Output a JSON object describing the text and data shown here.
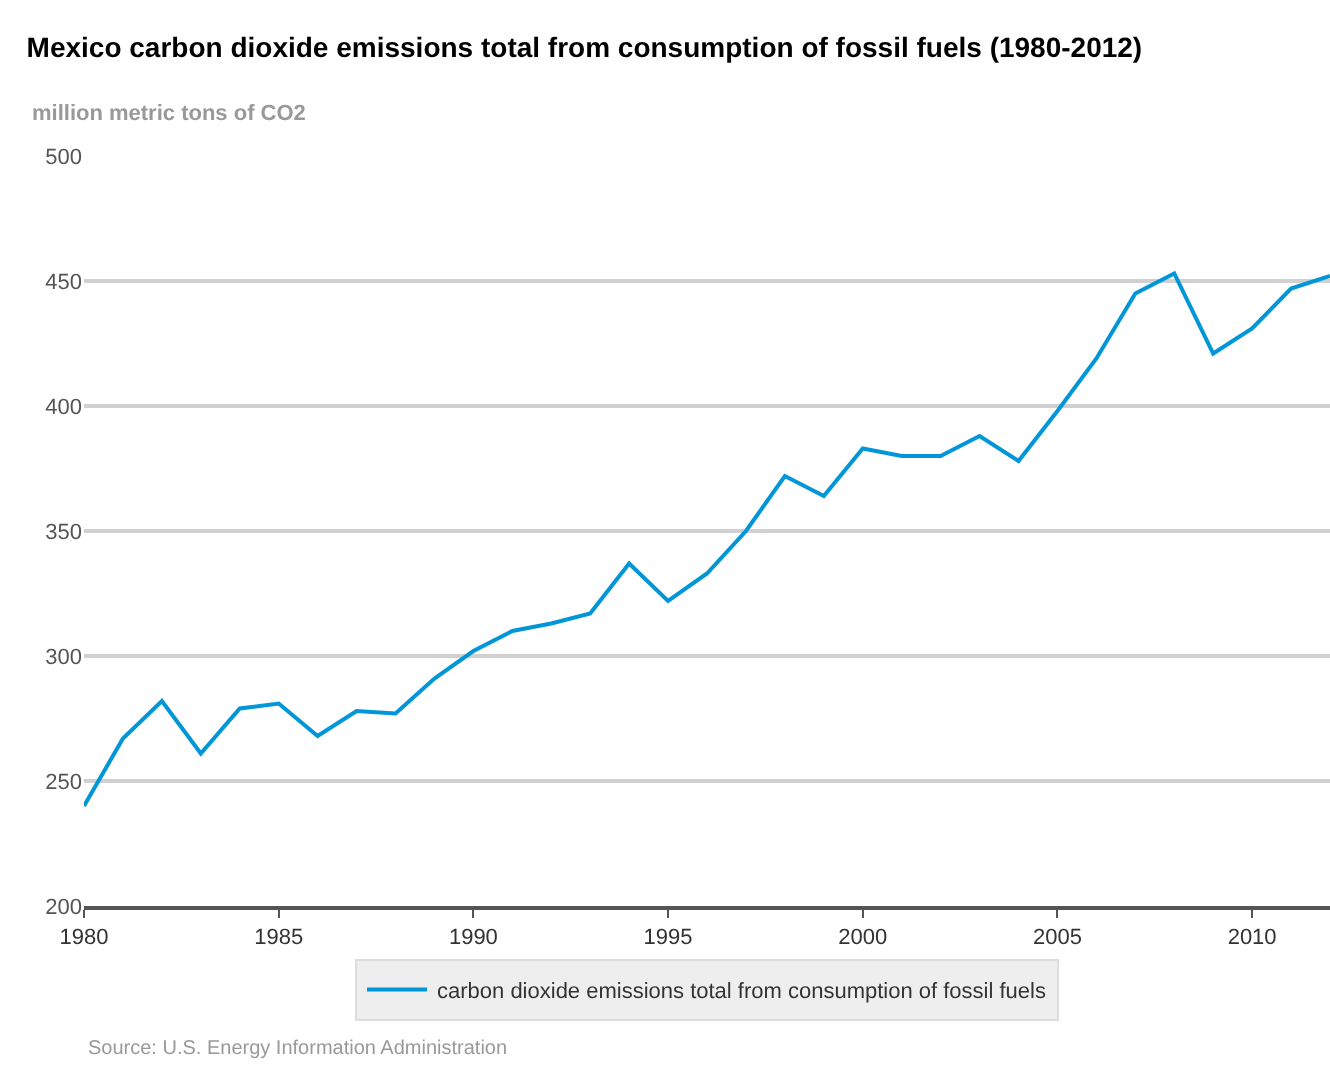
{
  "chart_data": {
    "type": "line",
    "title": "Mexico carbon dioxide emissions total from consumption of fossil fuels (1980-2012)",
    "ylabel": "million metric tons of CO2",
    "x": [
      1980,
      1981,
      1982,
      1983,
      1984,
      1985,
      1986,
      1987,
      1988,
      1989,
      1990,
      1991,
      1992,
      1993,
      1994,
      1995,
      1996,
      1997,
      1998,
      1999,
      2000,
      2001,
      2002,
      2003,
      2004,
      2005,
      2006,
      2007,
      2008,
      2009,
      2010,
      2011,
      2012
    ],
    "series": [
      {
        "name": "carbon dioxide emissions total from consumption of fossil fuels",
        "color": "#0096d7",
        "values": [
          240,
          267,
          282,
          261,
          279,
          281,
          268,
          278,
          277,
          291,
          302,
          310,
          313,
          317,
          337,
          322,
          333,
          350,
          372,
          364,
          383,
          380,
          380,
          388,
          378,
          398,
          419,
          445,
          453,
          421,
          431,
          447,
          452
        ]
      }
    ],
    "xlim": [
      1980,
      2012
    ],
    "xticks": [
      1980,
      1985,
      1990,
      1995,
      2000,
      2005,
      2010
    ],
    "ylim": [
      200,
      500
    ],
    "yticks": [
      200,
      250,
      300,
      350,
      400,
      450,
      500
    ],
    "grid": "y",
    "legend": "bottom",
    "marker": "none",
    "line_style": "solid",
    "annotations": [
      "Source: U.S. Energy Information Administration"
    ]
  }
}
